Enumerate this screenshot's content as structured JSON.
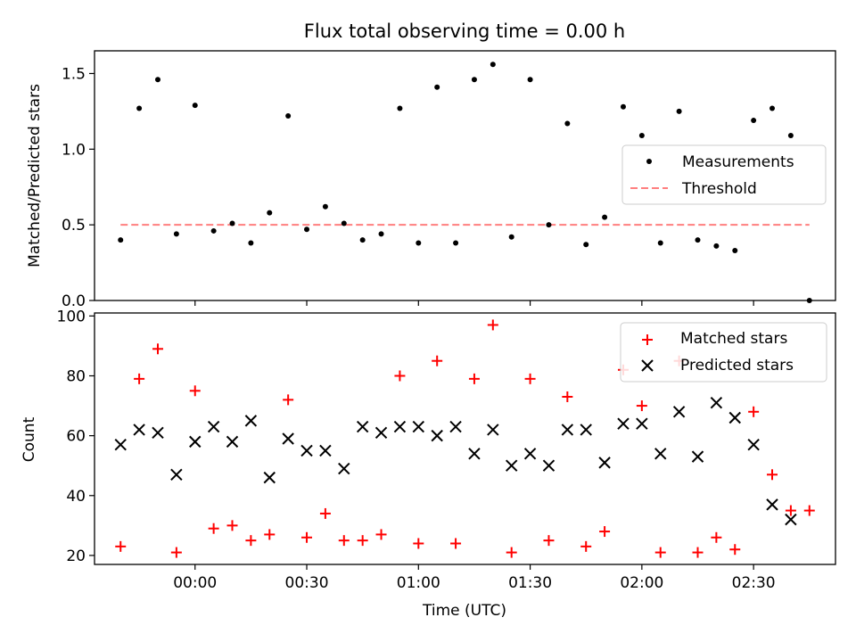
{
  "chart_data": [
    {
      "type": "scatter",
      "title": "Flux total observing time = 0.00 h",
      "xlabel": "",
      "ylabel": "Matched/Predicted stars",
      "ylim": [
        0,
        1.65
      ],
      "yticks": [
        "0.0",
        "0.5",
        "1.0",
        "1.5"
      ],
      "legend_placement": "center-right",
      "series": [
        {
          "name": "Measurements",
          "marker": "dot",
          "color": "#000000",
          "x": [
            "-00:20",
            "-00:15",
            "-00:10",
            "-00:05",
            "00:00",
            "00:05",
            "00:10",
            "00:15",
            "00:20",
            "00:25",
            "00:30",
            "00:35",
            "00:40",
            "00:45",
            "00:50",
            "00:55",
            "01:00",
            "01:05",
            "01:10",
            "01:15",
            "01:20",
            "01:25",
            "01:30",
            "01:35",
            "01:40",
            "01:45",
            "01:50",
            "01:55",
            "02:00",
            "02:05",
            "02:10",
            "02:15",
            "02:20",
            "02:25",
            "02:30",
            "02:35",
            "02:40",
            "02:45"
          ],
          "y": [
            0.4,
            1.27,
            1.46,
            0.44,
            1.29,
            0.46,
            0.51,
            0.38,
            0.58,
            1.22,
            0.47,
            0.62,
            0.51,
            0.4,
            0.44,
            1.27,
            0.38,
            1.41,
            0.38,
            1.46,
            1.56,
            0.42,
            1.46,
            0.5,
            1.17,
            0.37,
            0.55,
            1.28,
            1.09,
            0.38,
            1.25,
            0.4,
            0.36,
            0.33,
            1.19,
            1.27,
            1.09,
            0.0
          ]
        },
        {
          "name": "Threshold",
          "style": "dashed",
          "color": "#ff7f7f",
          "x": [
            "-00:20",
            "02:45"
          ],
          "y": [
            0.5,
            0.5
          ]
        }
      ]
    },
    {
      "type": "scatter",
      "title": "",
      "xlabel": "Time (UTC)",
      "ylabel": "Count",
      "ylim": [
        17,
        101
      ],
      "yticks": [
        "20",
        "40",
        "60",
        "80",
        "100"
      ],
      "xticks": [
        "00:00",
        "00:30",
        "01:00",
        "01:30",
        "02:00",
        "02:30"
      ],
      "legend_placement": "top-right",
      "series": [
        {
          "name": "Matched stars",
          "marker": "plus",
          "color": "#ff0000",
          "x": [
            "-00:20",
            "-00:15",
            "-00:10",
            "-00:05",
            "00:00",
            "00:05",
            "00:10",
            "00:15",
            "00:20",
            "00:25",
            "00:30",
            "00:35",
            "00:40",
            "00:45",
            "00:50",
            "00:55",
            "01:00",
            "01:05",
            "01:10",
            "01:15",
            "01:20",
            "01:25",
            "01:30",
            "01:35",
            "01:40",
            "01:45",
            "01:50",
            "01:55",
            "02:00",
            "02:05",
            "02:10",
            "02:15",
            "02:20",
            "02:25",
            "02:30",
            "02:35",
            "02:40",
            "02:45"
          ],
          "y": [
            23,
            79,
            89,
            21,
            75,
            29,
            30,
            25,
            27,
            72,
            26,
            34,
            25,
            25,
            27,
            80,
            24,
            85,
            24,
            79,
            97,
            21,
            79,
            25,
            73,
            23,
            28,
            82,
            70,
            21,
            85,
            21,
            26,
            22,
            68,
            47,
            35,
            35
          ]
        },
        {
          "name": "Predicted stars",
          "marker": "x",
          "color": "#000000",
          "x": [
            "-00:20",
            "-00:15",
            "-00:10",
            "-00:05",
            "00:00",
            "00:05",
            "00:10",
            "00:15",
            "00:20",
            "00:25",
            "00:30",
            "00:35",
            "00:40",
            "00:45",
            "00:50",
            "00:55",
            "01:00",
            "01:05",
            "01:10",
            "01:15",
            "01:20",
            "01:25",
            "01:30",
            "01:35",
            "01:40",
            "01:45",
            "01:50",
            "01:55",
            "02:00",
            "02:05",
            "02:10",
            "02:15",
            "02:20",
            "02:25",
            "02:30",
            "02:35",
            "02:40"
          ],
          "y": [
            57,
            62,
            61,
            47,
            58,
            63,
            58,
            65,
            46,
            59,
            55,
            55,
            49,
            63,
            61,
            63,
            63,
            60,
            63,
            54,
            62,
            50,
            54,
            50,
            62,
            62,
            51,
            64,
            64,
            54,
            68,
            53,
            71,
            66,
            57,
            37,
            32
          ]
        }
      ]
    }
  ]
}
